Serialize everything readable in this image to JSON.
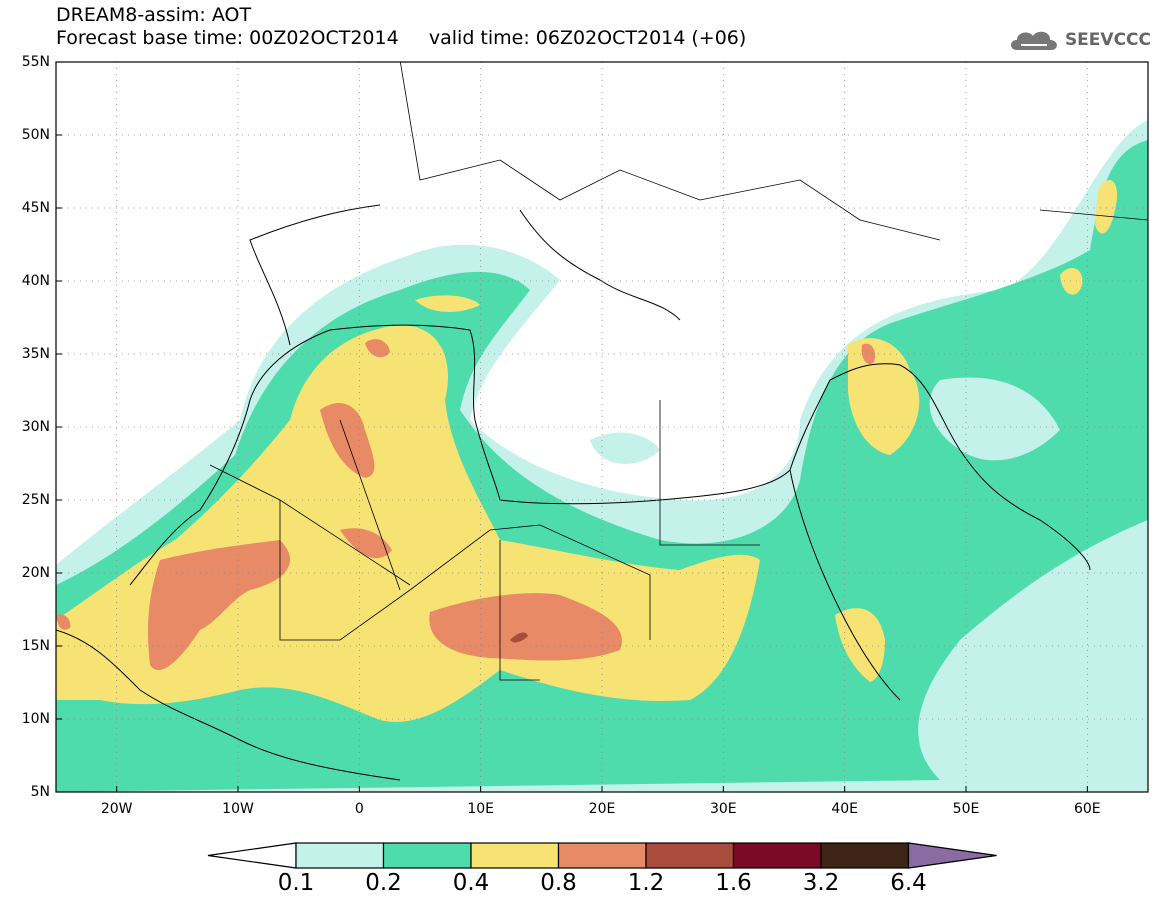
{
  "header": {
    "line1": "DREAM8-assim: AOT",
    "line2": "Forecast base time: 00Z02OCT2014     valid time: 06Z02OCT2014 (+06)"
  },
  "logo": {
    "text": "SEEVCCC",
    "icon": "cloud-icon"
  },
  "map": {
    "lon_range": [
      -25,
      65
    ],
    "lat_range": [
      5,
      55
    ],
    "lat_labels": [
      "55N",
      "50N",
      "45N",
      "40N",
      "35N",
      "30N",
      "25N",
      "20N",
      "15N",
      "10N",
      "5N"
    ],
    "lon_labels": [
      "20W",
      "10W",
      "0",
      "10E",
      "20E",
      "30E",
      "40E",
      "50E",
      "60E"
    ],
    "grid": "dotted"
  },
  "colorbar": {
    "ticks": [
      "0.1",
      "0.2",
      "0.4",
      "0.8",
      "1.2",
      "1.6",
      "3.2",
      "6.4"
    ],
    "colors": [
      "#ffffff",
      "#c4f1ea",
      "#4fdcad",
      "#f6e373",
      "#e98a67",
      "#a94c3d",
      "#7a0a26",
      "#3d2416",
      "#8c6aa4"
    ]
  }
}
